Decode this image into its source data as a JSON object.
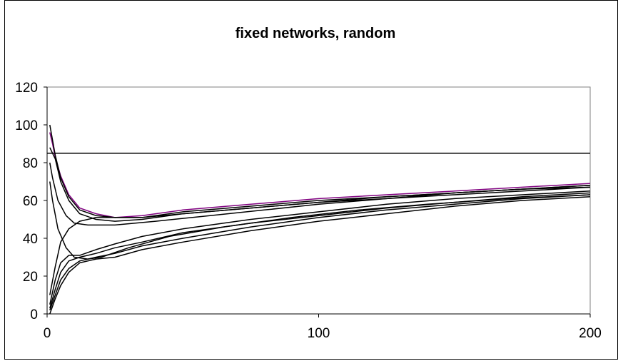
{
  "chart_data": {
    "type": "line",
    "title": "fixed networks, random",
    "xlabel": "",
    "ylabel": "",
    "xlim": [
      0,
      200
    ],
    "ylim": [
      0,
      120
    ],
    "x_ticks": [
      0,
      100,
      200
    ],
    "y_ticks": [
      0,
      20,
      40,
      60,
      80,
      100,
      120
    ],
    "grid": false,
    "legend": "none",
    "series": [
      {
        "color": "#000000",
        "points": [
          [
            0,
            85
          ],
          [
            200,
            85
          ]
        ]
      },
      {
        "color": "#800080",
        "points": [
          [
            1,
            96
          ],
          [
            2,
            90
          ],
          [
            3,
            83
          ],
          [
            5,
            73
          ],
          [
            8,
            63
          ],
          [
            12,
            56
          ],
          [
            18,
            53
          ],
          [
            25,
            51
          ],
          [
            35,
            52
          ],
          [
            50,
            55
          ],
          [
            75,
            58
          ],
          [
            100,
            61
          ],
          [
            125,
            63
          ],
          [
            150,
            65
          ],
          [
            175,
            67
          ],
          [
            200,
            69
          ]
        ]
      },
      {
        "color": "#000000",
        "points": [
          [
            1,
            100
          ],
          [
            2,
            92
          ],
          [
            3,
            84
          ],
          [
            5,
            72
          ],
          [
            8,
            62
          ],
          [
            12,
            55
          ],
          [
            18,
            52
          ],
          [
            25,
            51
          ],
          [
            35,
            51
          ],
          [
            50,
            54
          ],
          [
            75,
            57
          ],
          [
            100,
            60
          ],
          [
            125,
            62
          ],
          [
            150,
            64
          ],
          [
            175,
            66
          ],
          [
            200,
            68
          ]
        ]
      },
      {
        "color": "#000000",
        "points": [
          [
            1,
            88
          ],
          [
            3,
            82
          ],
          [
            5,
            70
          ],
          [
            8,
            60
          ],
          [
            12,
            53
          ],
          [
            18,
            50
          ],
          [
            25,
            49
          ],
          [
            35,
            50
          ],
          [
            50,
            53
          ],
          [
            75,
            56
          ],
          [
            100,
            59
          ],
          [
            125,
            61
          ],
          [
            150,
            64
          ],
          [
            175,
            66
          ],
          [
            200,
            68
          ]
        ]
      },
      {
        "color": "#000000",
        "points": [
          [
            1,
            80
          ],
          [
            2,
            72
          ],
          [
            4,
            60
          ],
          [
            7,
            52
          ],
          [
            10,
            48
          ],
          [
            15,
            47
          ],
          [
            25,
            47
          ],
          [
            40,
            49
          ],
          [
            60,
            52
          ],
          [
            80,
            55
          ],
          [
            100,
            58
          ],
          [
            125,
            61
          ],
          [
            150,
            63
          ],
          [
            175,
            65
          ],
          [
            200,
            67
          ]
        ]
      },
      {
        "color": "#000000",
        "points": [
          [
            1,
            70
          ],
          [
            2,
            60
          ],
          [
            4,
            45
          ],
          [
            7,
            35
          ],
          [
            10,
            30
          ],
          [
            15,
            29
          ],
          [
            20,
            30
          ],
          [
            30,
            35
          ],
          [
            45,
            41
          ],
          [
            65,
            46
          ],
          [
            90,
            51
          ],
          [
            115,
            55
          ],
          [
            140,
            58
          ],
          [
            170,
            61
          ],
          [
            200,
            63
          ]
        ]
      },
      {
        "color": "#000000",
        "points": [
          [
            1,
            10
          ],
          [
            3,
            25
          ],
          [
            5,
            38
          ],
          [
            8,
            45
          ],
          [
            12,
            49
          ],
          [
            18,
            51
          ],
          [
            25,
            51
          ],
          [
            35,
            51
          ],
          [
            50,
            53
          ],
          [
            75,
            56
          ],
          [
            100,
            59
          ],
          [
            125,
            62
          ],
          [
            150,
            64
          ],
          [
            175,
            66
          ],
          [
            200,
            67
          ]
        ]
      },
      {
        "color": "#000000",
        "points": [
          [
            1,
            5
          ],
          [
            3,
            18
          ],
          [
            5,
            27
          ],
          [
            8,
            31
          ],
          [
            12,
            31
          ],
          [
            18,
            34
          ],
          [
            25,
            37
          ],
          [
            35,
            41
          ],
          [
            50,
            45
          ],
          [
            75,
            50
          ],
          [
            100,
            54
          ],
          [
            125,
            58
          ],
          [
            150,
            61
          ],
          [
            175,
            63
          ],
          [
            200,
            65
          ]
        ]
      },
      {
        "color": "#000000",
        "points": [
          [
            1,
            3
          ],
          [
            3,
            13
          ],
          [
            5,
            22
          ],
          [
            8,
            28
          ],
          [
            12,
            30
          ],
          [
            18,
            32
          ],
          [
            25,
            35
          ],
          [
            35,
            38
          ],
          [
            50,
            43
          ],
          [
            75,
            48
          ],
          [
            100,
            52
          ],
          [
            125,
            56
          ],
          [
            150,
            59
          ],
          [
            175,
            62
          ],
          [
            200,
            64
          ]
        ]
      },
      {
        "color": "#000000",
        "points": [
          [
            1,
            2
          ],
          [
            3,
            10
          ],
          [
            5,
            18
          ],
          [
            8,
            24
          ],
          [
            12,
            28
          ],
          [
            18,
            30
          ],
          [
            25,
            32
          ],
          [
            35,
            36
          ],
          [
            50,
            40
          ],
          [
            75,
            46
          ],
          [
            100,
            51
          ],
          [
            125,
            55
          ],
          [
            150,
            58
          ],
          [
            175,
            61
          ],
          [
            200,
            63
          ]
        ]
      },
      {
        "color": "#000000",
        "points": [
          [
            1,
            0
          ],
          [
            3,
            8
          ],
          [
            5,
            15
          ],
          [
            8,
            22
          ],
          [
            12,
            27
          ],
          [
            18,
            29
          ],
          [
            25,
            30
          ],
          [
            35,
            34
          ],
          [
            50,
            38
          ],
          [
            75,
            44
          ],
          [
            100,
            49
          ],
          [
            125,
            53
          ],
          [
            150,
            57
          ],
          [
            175,
            60
          ],
          [
            200,
            62
          ]
        ]
      }
    ]
  }
}
